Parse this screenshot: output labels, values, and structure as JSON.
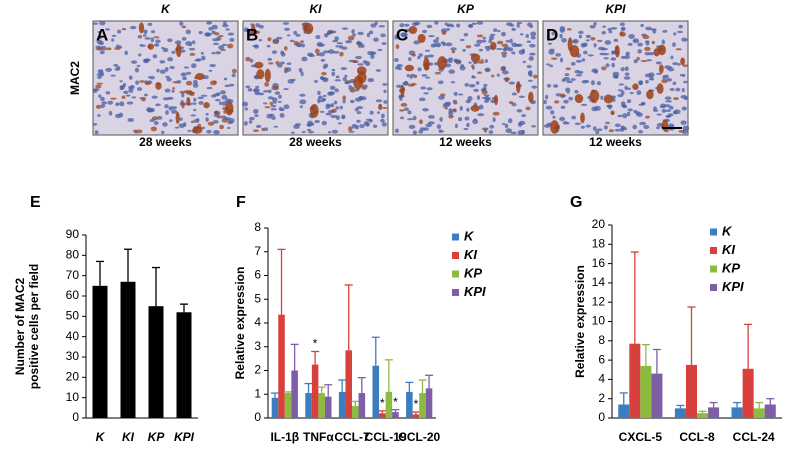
{
  "images": {
    "side_label": "MAC2",
    "panels": [
      {
        "letter": "A",
        "title": "K",
        "caption": "28 weeks"
      },
      {
        "letter": "B",
        "title": "KI",
        "caption": "28 weeks"
      },
      {
        "letter": "C",
        "title": "KP",
        "caption": "12 weeks"
      },
      {
        "letter": "D",
        "title": "KPI",
        "caption": "12 weeks"
      }
    ]
  },
  "chart_data": [
    {
      "type": "bar",
      "panel": "E",
      "y_label": [
        "Number of MAC2",
        "positive cells per field"
      ],
      "categories": [
        "K",
        "KI",
        "KP",
        "KPI"
      ],
      "values": [
        65,
        67,
        55,
        52
      ],
      "errors": [
        12,
        16,
        19,
        4
      ],
      "color": "#000000",
      "ylim": [
        0,
        90
      ],
      "yticks": [
        0,
        10,
        20,
        30,
        40,
        50,
        60,
        70,
        80,
        90
      ]
    },
    {
      "type": "grouped_bar",
      "panel": "F",
      "y_label": [
        "Relative expression"
      ],
      "categories": [
        "IL-1β",
        "TNFα",
        "CCL-7",
        "CCL-19",
        "CCL-20"
      ],
      "series": [
        {
          "name": "K",
          "color": "#3b7dc0",
          "values": [
            0.85,
            1.05,
            1.1,
            2.2,
            1.1
          ],
          "errors": [
            0.2,
            0.4,
            0.5,
            1.2,
            0.4
          ],
          "annotations": [
            null,
            null,
            null,
            null,
            null
          ]
        },
        {
          "name": "KI",
          "color": "#d8403b",
          "values": [
            4.35,
            2.25,
            2.85,
            0.2,
            0.15
          ],
          "errors": [
            2.75,
            0.55,
            2.75,
            0.1,
            0.1
          ],
          "annotations": [
            null,
            "*",
            null,
            "*",
            "*"
          ]
        },
        {
          "name": "KP",
          "color": "#8dbb3f",
          "values": [
            1.05,
            1.05,
            0.5,
            1.1,
            1.05
          ],
          "errors": [
            0.05,
            0.25,
            0.2,
            1.35,
            0.55
          ],
          "annotations": [
            null,
            null,
            null,
            null,
            null
          ]
        },
        {
          "name": "KPI",
          "color": "#7e5ea6",
          "values": [
            2.0,
            0.9,
            1.05,
            0.25,
            1.25
          ],
          "errors": [
            1.1,
            0.5,
            0.65,
            0.1,
            0.55
          ],
          "annotations": [
            null,
            null,
            null,
            "*",
            null
          ]
        }
      ],
      "ylim": [
        0,
        8
      ],
      "yticks": [
        0,
        1,
        2,
        3,
        4,
        5,
        6,
        7,
        8
      ]
    },
    {
      "type": "grouped_bar",
      "panel": "G",
      "y_label": [
        "Relative expression"
      ],
      "categories": [
        "CXCL-5",
        "CCL-8",
        "CCL-24"
      ],
      "series": [
        {
          "name": "K",
          "color": "#3b7dc0",
          "values": [
            1.4,
            1.0,
            1.1
          ],
          "errors": [
            1.2,
            0.3,
            0.5
          ]
        },
        {
          "name": "KI",
          "color": "#d8403b",
          "values": [
            7.7,
            5.5,
            5.1
          ],
          "errors": [
            9.5,
            6.0,
            4.6
          ]
        },
        {
          "name": "KP",
          "color": "#8dbb3f",
          "values": [
            5.4,
            0.5,
            1.0
          ],
          "errors": [
            2.2,
            0.2,
            0.6
          ]
        },
        {
          "name": "KPI",
          "color": "#7e5ea6",
          "values": [
            4.6,
            1.1,
            1.4
          ],
          "errors": [
            2.5,
            0.5,
            0.6
          ]
        }
      ],
      "ylim": [
        0,
        20
      ],
      "yticks": [
        0,
        2,
        4,
        6,
        8,
        10,
        12,
        14,
        16,
        18,
        20
      ]
    }
  ]
}
